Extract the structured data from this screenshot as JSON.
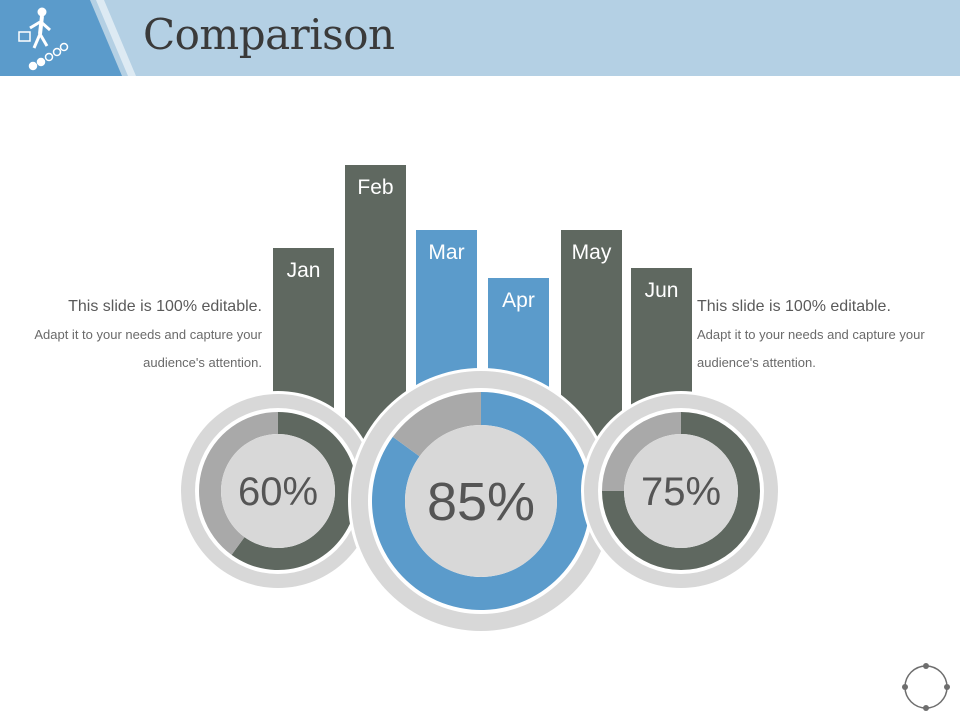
{
  "title": "Comparison",
  "text_left": {
    "headline": "This slide is 100% editable.",
    "body": "Adapt it to your needs and capture your audience's attention."
  },
  "text_right": {
    "headline": "This slide is 100% editable.",
    "body": "Adapt it to your needs and capture your audience's attention."
  },
  "colors": {
    "dark": "#5f6860",
    "blue": "#5b9bcb",
    "light_grey": "#a9a9a9",
    "ring": "#d8d8d8",
    "header": "#b4d0e4",
    "header_accent": "#5b9bcb"
  },
  "icons": [
    "businessman-climbing-icon",
    "navigation-circle-icon"
  ],
  "chart_data": {
    "type": "bar",
    "categories": [
      "Jan",
      "Feb",
      "Mar",
      "Apr",
      "May",
      "Jun"
    ],
    "bar_colors": [
      "dark",
      "dark",
      "blue",
      "blue",
      "dark",
      "dark"
    ],
    "donuts": [
      {
        "label": "60%",
        "value": 60,
        "color": "dark"
      },
      {
        "label": "85%",
        "value": 85,
        "color": "blue"
      },
      {
        "label": "75%",
        "value": 75,
        "color": "dark"
      }
    ]
  }
}
